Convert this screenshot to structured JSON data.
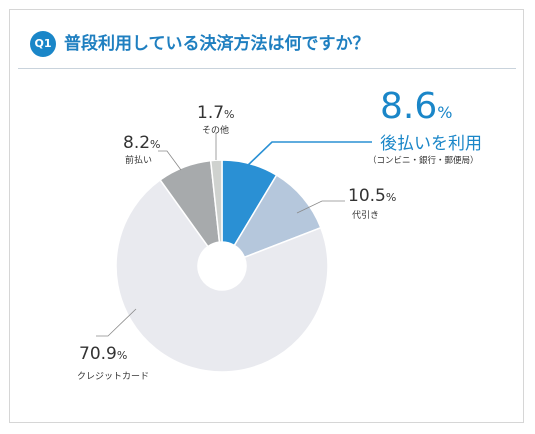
{
  "header": {
    "badge": "Q1",
    "title": "普段利用している決済方法は何ですか？"
  },
  "chart_data": {
    "type": "pie",
    "title": "普段利用している決済方法は何ですか？",
    "unit": "%",
    "series": [
      {
        "name": "後払いを利用",
        "value": 8.6,
        "note": "（コンビニ・銀行・郵便局）",
        "color": "#2a90d4"
      },
      {
        "name": "代引き",
        "value": 10.5,
        "color": "#b5c7dc"
      },
      {
        "name": "クレジットカード",
        "value": 70.9,
        "color": "#e9eaef"
      },
      {
        "name": "前払い",
        "value": 8.2,
        "color": "#a7aaac"
      },
      {
        "name": "その他",
        "value": 1.7,
        "color": "#cfd2cf"
      }
    ]
  },
  "labels": {
    "atobarai": {
      "pct": "8.6",
      "unit": "%",
      "name": "後払いを利用",
      "note": "（コンビニ・銀行・郵便局）"
    },
    "daibiki": {
      "pct": "10.5",
      "unit": "%",
      "name": "代引き"
    },
    "credit": {
      "pct": "70.9",
      "unit": "%",
      "name": "クレジットカード"
    },
    "maebarai": {
      "pct": "8.2",
      "unit": "%",
      "name": "前払い"
    },
    "other": {
      "pct": "1.7",
      "unit": "%",
      "name": "その他"
    }
  }
}
